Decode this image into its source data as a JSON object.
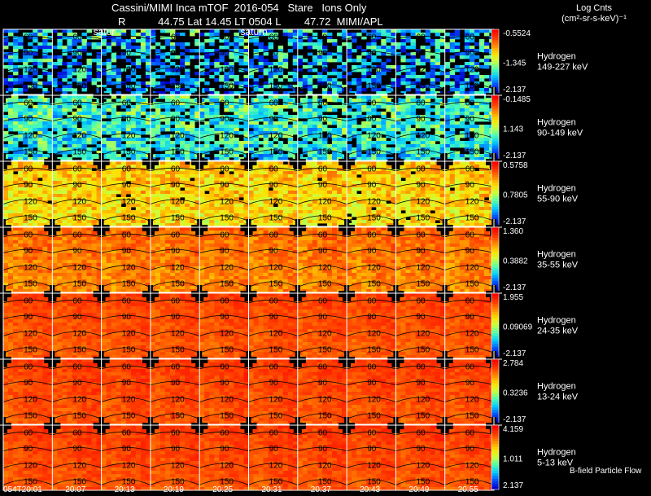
{
  "header": {
    "line1": "Cassini/MIMI Inca mTOF  2016-054   Stare   Ions Only",
    "line2": "R           44.75 Lat 14.45 LT 0504 L        47.72  MIMI/APL",
    "colorbar_title_1": "Log Cnts",
    "colorbar_title_2": "(cm²-sr-s-keV)⁻¹",
    "footer_note": "B-field Particle Flow"
  },
  "colors": {
    "background": "#000000",
    "text": "#ffffff",
    "gridline": "#ffffff",
    "contour": "#000000",
    "colormap": [
      "#0000c8",
      "#0050ff",
      "#00c8ff",
      "#50ffb0",
      "#c8ff40",
      "#ffe000",
      "#ff8c00",
      "#ff3c00",
      "#ff0000"
    ]
  },
  "chart_data": {
    "type": "heatmap",
    "title": "Cassini/MIMI Inca mTOF 2016-054 Stare Ions Only",
    "time_labels": [
      "054T20:01",
      "20:07",
      "20:13",
      "20:19",
      "20:25",
      "20:31",
      "20:37",
      "20:43",
      "20:49",
      "20:55"
    ],
    "contour_labels": [
      "60",
      "90",
      "120",
      "150"
    ],
    "marker_labels": [
      {
        "column": 2,
        "row": 0,
        "text": "satur"
      },
      {
        "column": 5,
        "row": 0,
        "text": "saturn"
      }
    ],
    "rows": [
      {
        "species": "Hydrogen",
        "energy": "149-227 keV",
        "cb_max": "-0.5524",
        "cb_mid": "-1.345",
        "cb_min": "-2.137",
        "mean_level": 0.24,
        "noise": 0.22,
        "dropout": 0.38
      },
      {
        "species": "Hydrogen",
        "energy": "90-149 keV",
        "cb_max": "-0.1485",
        "cb_mid": "1.143",
        "cb_min": "-2.137",
        "mean_level": 0.34,
        "noise": 0.16,
        "dropout": 0.14
      },
      {
        "species": "Hydrogen",
        "energy": "55-90 keV",
        "cb_max": "0.5758",
        "cb_mid": "0.7805",
        "cb_min": "-2.137",
        "mean_level": 0.64,
        "noise": 0.13,
        "dropout": 0.02
      },
      {
        "species": "Hydrogen",
        "energy": "35-55 keV",
        "cb_max": "1.360",
        "cb_mid": "0.3882",
        "cb_min": "-2.137",
        "mean_level": 0.78,
        "noise": 0.08,
        "dropout": 0.0
      },
      {
        "species": "Hydrogen",
        "energy": "24-35 keV",
        "cb_max": "1.955",
        "cb_mid": "0.09069",
        "cb_min": "-2.137",
        "mean_level": 0.85,
        "noise": 0.05,
        "dropout": 0.0
      },
      {
        "species": "Hydrogen",
        "energy": "13-24 keV",
        "cb_max": "2.784",
        "cb_mid": "0.3236",
        "cb_min": "-2.137",
        "mean_level": 0.86,
        "noise": 0.05,
        "dropout": 0.0
      },
      {
        "species": "Hydrogen",
        "energy": "5-13 keV",
        "cb_max": "4.159",
        "cb_mid": "1.011",
        "cb_min": "2.137",
        "mean_level": 0.86,
        "noise": 0.05,
        "dropout": 0.0
      }
    ]
  }
}
